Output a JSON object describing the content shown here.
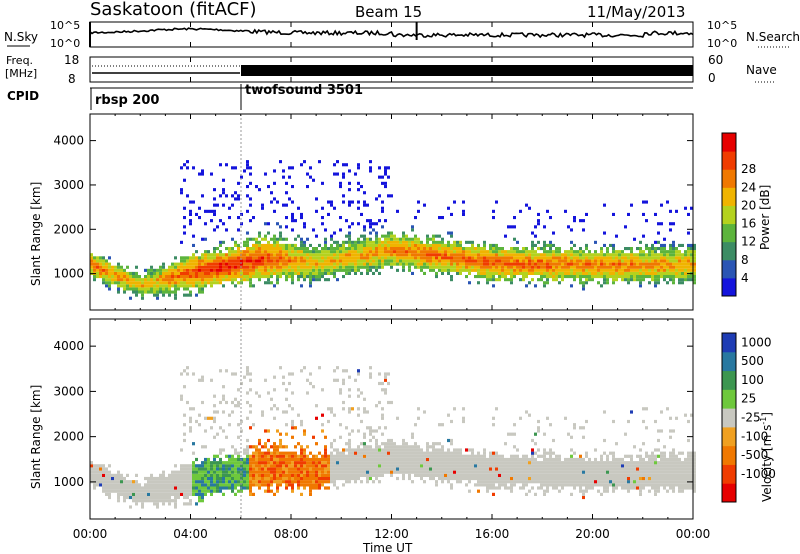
{
  "header": {
    "station": "Saskatoon (fitACF)",
    "beam": "Beam 15",
    "date": "11/May/2013"
  },
  "noise_panel": {
    "left_label": "N.Sky",
    "right_label": "N.Search",
    "left_ticks": [
      "10^5",
      "10^0"
    ],
    "right_ticks": [
      "10^5",
      "10^0"
    ]
  },
  "freq_panel": {
    "left_label_line1": "Freq.",
    "left_label_line2": "[MHz]",
    "left_ticks": [
      "18",
      "8"
    ],
    "right_label": "Nave",
    "right_ticks": [
      "60",
      "0"
    ]
  },
  "cpid_panel": {
    "label": "CPID",
    "programs": [
      {
        "name": "rbsp 200",
        "start_hour": 0
      },
      {
        "name": "twofsound 3501",
        "start_hour": 6
      }
    ]
  },
  "power_panel": {
    "ylabel": "Slant Range [km]",
    "yticks": [
      "1000",
      "2000",
      "3000",
      "4000"
    ],
    "colorbar_label": "Power [dB]",
    "colorbar_ticks": [
      "4",
      "8",
      "12",
      "16",
      "20",
      "24",
      "28"
    ],
    "colors": [
      "#1414dc",
      "#2a55b4",
      "#3c8c64",
      "#5cb43c",
      "#b4d21e",
      "#f0b400",
      "#f07800",
      "#f03c00",
      "#e60000"
    ]
  },
  "velocity_panel": {
    "ylabel": "Slant Range [km]",
    "yticks": [
      "1000",
      "2000",
      "3000",
      "4000"
    ],
    "colorbar_label": "Velocity [m s",
    "colorbar_label_sup": "-1",
    "colorbar_label_end": "]",
    "colorbar_ticks": [
      "1000",
      "500",
      "100",
      "25",
      "-25",
      "-100",
      "-500",
      "-1000"
    ],
    "colors": [
      "#1e3cb4",
      "#2878a0",
      "#3c9650",
      "#6ec83c",
      "#c8c8c0",
      "#f0a020",
      "#f07800",
      "#f03c00",
      "#e60000"
    ]
  },
  "xaxis": {
    "label": "Time UT",
    "ticks": [
      "00:00",
      "04:00",
      "08:00",
      "12:00",
      "16:00",
      "20:00",
      "00:00"
    ]
  },
  "chart_data": [
    {
      "type": "heatmap",
      "title": "Power [dB]",
      "xlabel": "Time UT",
      "ylabel": "Slant Range [km]",
      "xlim": [
        0,
        24
      ],
      "ylim": [
        180,
        4600
      ],
      "zlim": [
        0,
        32
      ],
      "description_points": [
        {
          "t": 0,
          "center_km": 1150,
          "spread_km": 250,
          "peak_db": 26
        },
        {
          "t": 2,
          "center_km": 700,
          "spread_km": 250,
          "peak_db": 20
        },
        {
          "t": 4,
          "center_km": 1000,
          "spread_km": 400,
          "peak_db": 26
        },
        {
          "t": 5,
          "center_km": 1100,
          "spread_km": 350,
          "peak_db": 30
        },
        {
          "t": 7,
          "center_km": 1300,
          "spread_km": 450,
          "peak_db": 27
        },
        {
          "t": 9,
          "center_km": 1200,
          "spread_km": 350,
          "peak_db": 20
        },
        {
          "t": 12,
          "center_km": 1500,
          "spread_km": 350,
          "peak_db": 24
        },
        {
          "t": 16,
          "center_km": 1200,
          "spread_km": 350,
          "peak_db": 26
        },
        {
          "t": 20,
          "center_km": 1150,
          "spread_km": 350,
          "peak_db": 24
        },
        {
          "t": 24,
          "center_km": 1150,
          "spread_km": 350,
          "peak_db": 22
        }
      ]
    },
    {
      "type": "heatmap",
      "title": "Velocity [m s-1]",
      "xlabel": "Time UT",
      "ylabel": "Slant Range [km]",
      "xlim": [
        0,
        24
      ],
      "ylim": [
        180,
        4600
      ],
      "zlim": [
        -1000,
        1000
      ],
      "description_points": [
        {
          "t": 0,
          "center_km": 1250,
          "velocity": 0
        },
        {
          "t": 4.5,
          "center_km": 1100,
          "velocity": 300
        },
        {
          "t": 6,
          "center_km": 1200,
          "velocity": 200
        },
        {
          "t": 8,
          "center_km": 1350,
          "velocity": -150
        },
        {
          "t": 9,
          "center_km": 1200,
          "velocity": -100
        },
        {
          "t": 14,
          "center_km": 1400,
          "velocity": 0
        },
        {
          "t": 24,
          "center_km": 1300,
          "velocity": 0
        }
      ]
    }
  ]
}
